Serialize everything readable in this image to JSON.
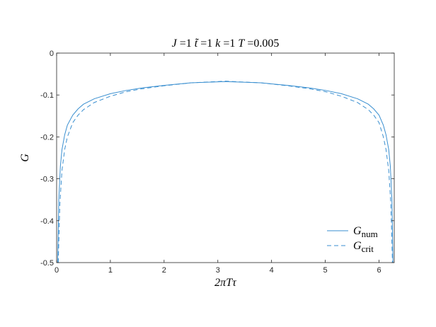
{
  "chart_data": {
    "type": "line",
    "title": {
      "parts": [
        {
          "text": "J",
          "italic": true
        },
        {
          "text": " =1 ",
          "italic": false
        },
        {
          "text": "t̃",
          "italic": true
        },
        {
          "text": " =1 ",
          "italic": false
        },
        {
          "text": "k",
          "italic": true
        },
        {
          "text": " =1 ",
          "italic": false
        },
        {
          "text": "T",
          "italic": true
        },
        {
          "text": " =0.005",
          "italic": false
        }
      ]
    },
    "xlabel": "2πTτ",
    "ylabel": "G",
    "xlim": [
      0,
      6.283
    ],
    "ylim": [
      -0.5,
      0
    ],
    "xticks": [
      0,
      1,
      2,
      3,
      4,
      5,
      6
    ],
    "xtick_labels": [
      "0",
      "1",
      "2",
      "3",
      "4",
      "5",
      "6"
    ],
    "yticks": [
      -0.5,
      -0.4,
      -0.3,
      -0.2,
      -0.1,
      0
    ],
    "ytick_labels": [
      "-0.5",
      "-0.4",
      "-0.3",
      "-0.2",
      "-0.1",
      "0"
    ],
    "grid": false,
    "legend_position": "bottom-right",
    "series": [
      {
        "base": "G",
        "sub": "num",
        "style": "solid",
        "color": "#3a8fd0",
        "x": [
          0.02,
          0.04,
          0.07,
          0.1,
          0.15,
          0.2,
          0.3,
          0.4,
          0.5,
          0.7,
          1.0,
          1.3,
          1.6,
          2.0,
          2.5,
          3.1416,
          3.8,
          4.3,
          4.7,
          5.0,
          5.3,
          5.6,
          5.8,
          5.9,
          6.0,
          6.08,
          6.13,
          6.18,
          6.21,
          6.24,
          6.26
        ],
        "y": [
          -0.5,
          -0.35,
          -0.27,
          -0.23,
          -0.195,
          -0.172,
          -0.148,
          -0.133,
          -0.122,
          -0.109,
          -0.097,
          -0.089,
          -0.083,
          -0.077,
          -0.071,
          -0.068,
          -0.071,
          -0.077,
          -0.083,
          -0.089,
          -0.097,
          -0.109,
          -0.122,
          -0.133,
          -0.148,
          -0.172,
          -0.195,
          -0.23,
          -0.27,
          -0.35,
          -0.5
        ]
      },
      {
        "base": "G",
        "sub": "crit",
        "style": "dashed",
        "color": "#3a8fd0",
        "x": [
          0.03,
          0.06,
          0.1,
          0.15,
          0.2,
          0.3,
          0.4,
          0.5,
          0.7,
          1.0,
          1.3,
          1.6,
          2.0,
          2.5,
          3.1416,
          3.8,
          4.3,
          4.7,
          5.0,
          5.3,
          5.6,
          5.8,
          5.9,
          6.0,
          6.08,
          6.13,
          6.18,
          6.22,
          6.25
        ],
        "y": [
          -0.5,
          -0.36,
          -0.28,
          -0.23,
          -0.2,
          -0.166,
          -0.148,
          -0.135,
          -0.118,
          -0.103,
          -0.092,
          -0.085,
          -0.078,
          -0.071,
          -0.067,
          -0.071,
          -0.078,
          -0.085,
          -0.092,
          -0.103,
          -0.118,
          -0.135,
          -0.148,
          -0.166,
          -0.2,
          -0.23,
          -0.28,
          -0.36,
          -0.5
        ]
      }
    ]
  }
}
